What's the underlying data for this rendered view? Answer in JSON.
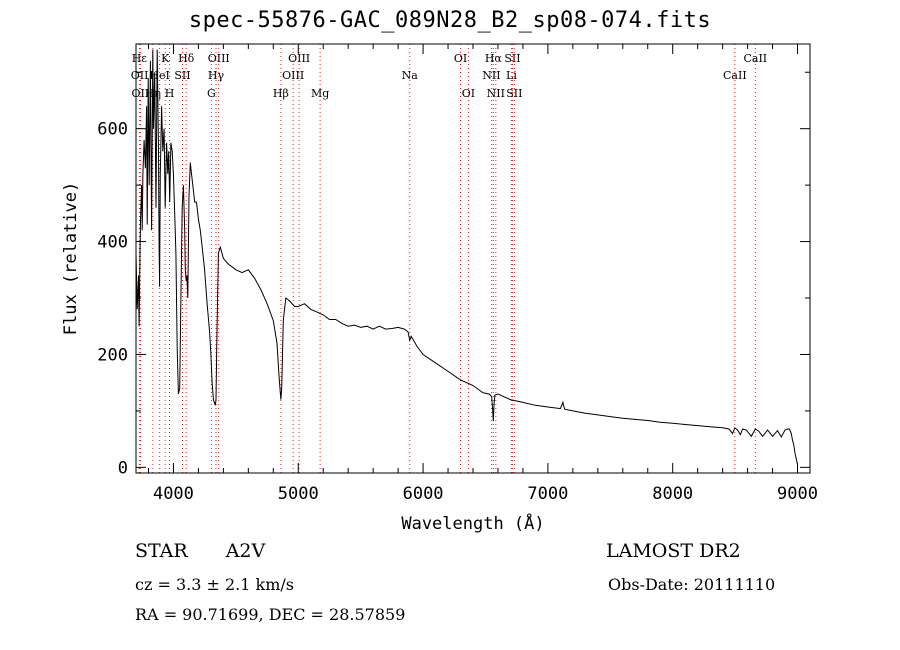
{
  "chart_data": {
    "type": "line",
    "title": "spec-55876-GAC_089N28_B2_sp08-074.fits",
    "xlabel": "Wavelength (Å)",
    "ylabel": "Flux (relative)",
    "xlim": [
      3700,
      9100
    ],
    "ylim": [
      -10,
      750
    ],
    "xticks": [
      4000,
      5000,
      6000,
      7000,
      8000,
      9000
    ],
    "yticks": [
      0,
      200,
      400,
      600
    ],
    "grid": false,
    "legend": "none",
    "line_color": "#000000",
    "marker_color": "#d62728",
    "line_markers": [
      {
        "label": "Hε",
        "x": 3727,
        "row": 1
      },
      {
        "label": "OII",
        "x": 3729,
        "row": 2
      },
      {
        "label": "OII",
        "x": 3735,
        "row": 3
      },
      {
        "label": "Hη",
        "x": 3835,
        "row": 3
      },
      {
        "label": "HeI",
        "x": 3889,
        "row": 2
      },
      {
        "label": "K",
        "x": 3934,
        "row": 1
      },
      {
        "label": "H",
        "x": 3969,
        "row": 3
      },
      {
        "label": "SII",
        "x": 4072,
        "row": 2
      },
      {
        "label": "Hδ",
        "x": 4102,
        "row": 1
      },
      {
        "label": "G",
        "x": 4304,
        "row": 3
      },
      {
        "label": "Hγ",
        "x": 4341,
        "row": 2
      },
      {
        "label": "OIII",
        "x": 4363,
        "row": 1
      },
      {
        "label": "Hβ",
        "x": 4861,
        "row": 3
      },
      {
        "label": "OIII",
        "x": 4959,
        "row": 2
      },
      {
        "label": "OIII",
        "x": 5007,
        "row": 1
      },
      {
        "label": "Mg",
        "x": 5175,
        "row": 3
      },
      {
        "label": "Na",
        "x": 5893,
        "row": 2
      },
      {
        "label": "OI",
        "x": 6300,
        "row": 1
      },
      {
        "label": "OI",
        "x": 6363,
        "row": 3
      },
      {
        "label": "NII",
        "x": 6548,
        "row": 2
      },
      {
        "label": "Hα",
        "x": 6563,
        "row": 1
      },
      {
        "label": "NII",
        "x": 6583,
        "row": 3
      },
      {
        "label": "Li",
        "x": 6708,
        "row": 2
      },
      {
        "label": "SII",
        "x": 6716,
        "row": 1
      },
      {
        "label": "SII",
        "x": 6731,
        "row": 3
      },
      {
        "label": "CaII",
        "x": 8498,
        "row": 2
      },
      {
        "label": "CaII",
        "x": 8662,
        "row": 1
      }
    ],
    "series": [
      {
        "x": [
          3700,
          3710,
          3720,
          3725,
          3735,
          3745,
          3750,
          3755,
          3765,
          3775,
          3785,
          3790,
          3798,
          3806,
          3815,
          3825,
          3835,
          3840,
          3850,
          3860,
          3870,
          3880,
          3885,
          3889,
          3895,
          3905,
          3915,
          3925,
          3934,
          3945,
          3955,
          3962,
          3970,
          3980,
          3990,
          4000,
          4010,
          4020,
          4030,
          4040,
          4050,
          4060,
          4070,
          4080,
          4090,
          4095,
          4102,
          4108,
          4115,
          4125,
          4135,
          4145,
          4155,
          4170,
          4185,
          4200,
          4215,
          4230,
          4250,
          4270,
          4290,
          4300,
          4310,
          4320,
          4335,
          4341,
          4348,
          4360,
          4375,
          4400,
          4440,
          4500,
          4550,
          4600,
          4650,
          4700,
          4750,
          4800,
          4830,
          4845,
          4855,
          4861,
          4867,
          4880,
          4900,
          4930,
          4970,
          5000,
          5050,
          5100,
          5150,
          5200,
          5250,
          5300,
          5350,
          5400,
          5450,
          5500,
          5550,
          5600,
          5650,
          5700,
          5750,
          5800,
          5850,
          5880,
          5893,
          5905,
          5950,
          6000,
          6100,
          6200,
          6300,
          6400,
          6480,
          6530,
          6550,
          6558,
          6563,
          6568,
          6575,
          6600,
          6650,
          6700,
          6800,
          6900,
          7000,
          7100,
          7120,
          7125,
          7135,
          7200,
          7300,
          7400,
          7500,
          7600,
          7700,
          7800,
          7900,
          8000,
          8100,
          8200,
          8300,
          8400,
          8450,
          8480,
          8498,
          8520,
          8542,
          8560,
          8590,
          8630,
          8662,
          8690,
          8720,
          8760,
          8800,
          8840,
          8870,
          8900,
          8920,
          8935,
          8950,
          8960,
          8970,
          8980,
          8990,
          9000
        ],
        "y": [
          380,
          280,
          340,
          250,
          430,
          500,
          420,
          520,
          580,
          530,
          640,
          430,
          690,
          500,
          720,
          420,
          740,
          600,
          700,
          460,
          740,
          560,
          390,
          320,
          520,
          640,
          560,
          600,
          460,
          575,
          520,
          560,
          470,
          575,
          560,
          520,
          450,
          380,
          210,
          130,
          140,
          300,
          460,
          500,
          420,
          350,
          330,
          340,
          300,
          480,
          540,
          520,
          500,
          470,
          470,
          440,
          420,
          390,
          350,
          290,
          240,
          200,
          150,
          120,
          110,
          120,
          230,
          380,
          390,
          370,
          360,
          350,
          345,
          350,
          335,
          315,
          290,
          260,
          220,
          165,
          135,
          120,
          140,
          260,
          300,
          295,
          285,
          285,
          290,
          280,
          275,
          270,
          262,
          262,
          255,
          250,
          252,
          248,
          250,
          245,
          250,
          245,
          246,
          248,
          245,
          240,
          225,
          232,
          215,
          200,
          185,
          170,
          155,
          145,
          132,
          130,
          125,
          100,
          82,
          110,
          128,
          130,
          125,
          120,
          115,
          110,
          107,
          104,
          115,
          110,
          103,
          100,
          96,
          93,
          90,
          87,
          85,
          83,
          80,
          78,
          76,
          74,
          72,
          70,
          68,
          60,
          70,
          66,
          58,
          68,
          66,
          55,
          68,
          64,
          55,
          66,
          55,
          65,
          54,
          66,
          68,
          68,
          60,
          48,
          40,
          25,
          15,
          5
        ]
      }
    ]
  },
  "info": {
    "object_type": "STAR",
    "subclass": "A2V",
    "survey": "LAMOST DR2",
    "cz": "cz = 3.3 ± 2.1 km/s",
    "obs_date": "Obs-Date: 20111110",
    "coords": "RA =  90.71699, DEC =  28.57859"
  }
}
